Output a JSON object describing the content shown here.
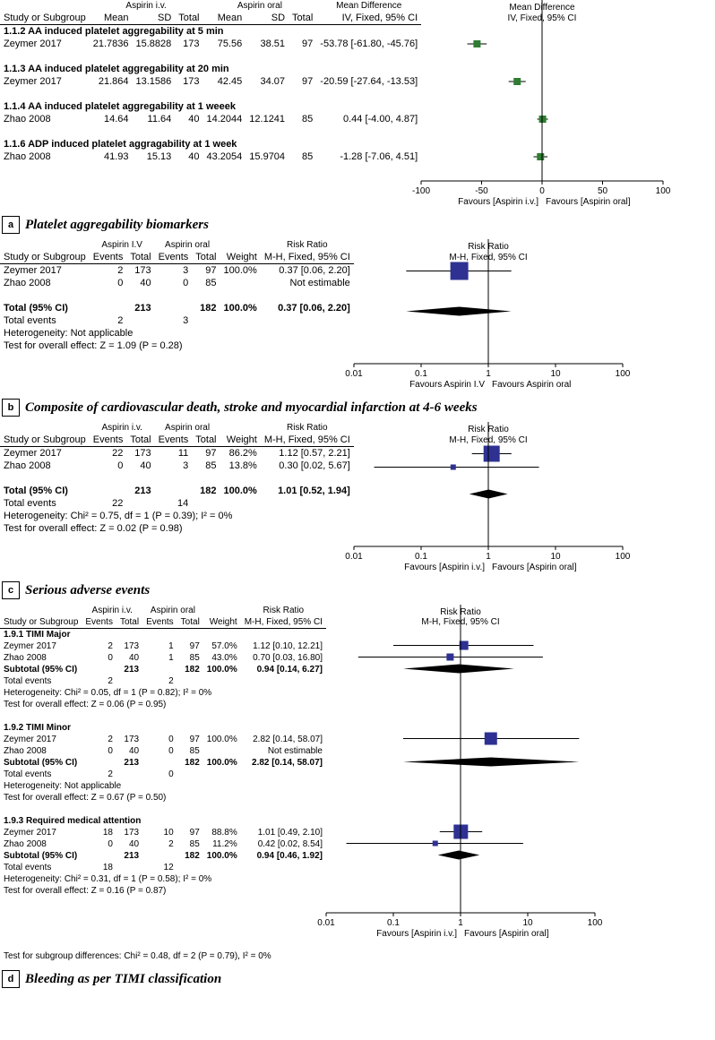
{
  "colors": {
    "marker": "#2e3192",
    "square_small": "#2e3192",
    "diamond": "#000000",
    "ci_line": "#000000",
    "axis": "#000000",
    "bg": "#ffffff",
    "marker_green": "#2e7d32"
  },
  "axis": {
    "log": {
      "min": 0.01,
      "max": 100,
      "ticks": [
        0.01,
        0.1,
        1,
        10,
        100
      ],
      "tick_labels": [
        "0.01",
        "0.1",
        "1",
        "10",
        "100"
      ]
    },
    "linear": {
      "min": -100,
      "max": 100,
      "ticks": [
        -100,
        -50,
        0,
        50,
        100
      ],
      "tick_labels": [
        "-100",
        "-50",
        "0",
        "50",
        "100"
      ]
    }
  },
  "panelA": {
    "letter": "a",
    "caption": "Platelet aggregability biomarkers",
    "group_labels": {
      "g1": "Aspirin i.v.",
      "g2": "Aspirin oral"
    },
    "col_head": [
      "Study or Subgroup",
      "Mean",
      "SD",
      "Total",
      "Mean",
      "SD",
      "Total",
      "Mean Difference",
      "IV, Fixed, 95% CI"
    ],
    "plot_head1": "Mean Difference",
    "plot_head2": "IV, Fixed, 95% CI",
    "fav_left": "Favours [Aspirin i.v.]",
    "fav_right": "Favours [Aspirin oral]",
    "sections": [
      {
        "title": "1.1.2 AA induced platelet aggregability at 5 min",
        "rows": [
          {
            "study": "Zeymer 2017",
            "m1": "21.7836",
            "sd1": "15.8828",
            "n1": "173",
            "m2": "75.56",
            "sd2": "38.51",
            "n2": "97",
            "md": "-53.78 [-61.80, -45.76]",
            "pt": -53.78,
            "lo": -61.8,
            "hi": -45.76
          }
        ]
      },
      {
        "title": "1.1.3 AA induced platelet aggregability at 20 min",
        "rows": [
          {
            "study": "Zeymer 2017",
            "m1": "21.864",
            "sd1": "13.1586",
            "n1": "173",
            "m2": "42.45",
            "sd2": "34.07",
            "n2": "97",
            "md": "-20.59 [-27.64, -13.53]",
            "pt": -20.59,
            "lo": -27.64,
            "hi": -13.53
          }
        ]
      },
      {
        "title": "1.1.4 AA induced platelet aggregability at 1 weeek",
        "rows": [
          {
            "study": "Zhao 2008",
            "m1": "14.64",
            "sd1": "11.64",
            "n1": "40",
            "m2": "14.2044",
            "sd2": "12.1241",
            "n2": "85",
            "md": "0.44 [-4.00, 4.87]",
            "pt": 0.44,
            "lo": -4.0,
            "hi": 4.87
          }
        ]
      },
      {
        "title": "1.1.6 ADP induced platelet aggragability at 1 week",
        "rows": [
          {
            "study": "Zhao 2008",
            "m1": "41.93",
            "sd1": "15.13",
            "n1": "40",
            "m2": "43.2054",
            "sd2": "15.9704",
            "n2": "85",
            "md": "-1.28 [-7.06, 4.51]",
            "pt": -1.28,
            "lo": -7.06,
            "hi": 4.51
          }
        ]
      }
    ]
  },
  "panelB": {
    "letter": "b",
    "caption": "Composite of cardiovascular death, stroke and myocardial infarction at 4-6 weeks",
    "group_labels": {
      "g1": "Aspirin I.V",
      "g2": "Aspirin oral"
    },
    "col_head": [
      "Study or Subgroup",
      "Events",
      "Total",
      "Events",
      "Total",
      "Weight",
      "Risk Ratio",
      "M-H, Fixed, 95% CI"
    ],
    "plot_head1": "Risk Ratio",
    "plot_head2": "M-H, Fixed, 95% CI",
    "fav_left": "Favours Aspirin I.V",
    "fav_right": "Favours Aspirin oral",
    "rows": [
      {
        "study": "Zeymer 2017",
        "e1": "2",
        "n1": "173",
        "e2": "3",
        "n2": "97",
        "w": "100.0%",
        "rr": "0.37 [0.06, 2.20]",
        "pt": 0.37,
        "lo": 0.06,
        "hi": 2.2,
        "size": 20
      },
      {
        "study": "Zhao 2008",
        "e1": "0",
        "n1": "40",
        "e2": "0",
        "n2": "85",
        "w": "",
        "rr": "Not estimable",
        "pt": null
      }
    ],
    "total": {
      "label": "Total (95% CI)",
      "n1": "213",
      "n2": "182",
      "w": "100.0%",
      "rr": "0.37 [0.06, 2.20]",
      "pt": 0.37,
      "lo": 0.06,
      "hi": 2.2
    },
    "total_events": {
      "label": "Total events",
      "e1": "2",
      "e2": "3"
    },
    "het": "Heterogeneity: Not applicable",
    "eff": "Test for overall effect: Z = 1.09 (P = 0.28)"
  },
  "panelC": {
    "letter": "c",
    "caption": "Serious adverse events",
    "group_labels": {
      "g1": "Aspirin i.v.",
      "g2": "Aspirin oral"
    },
    "col_head": [
      "Study or Subgroup",
      "Events",
      "Total",
      "Events",
      "Total",
      "Weight",
      "Risk Ratio",
      "M-H, Fixed, 95% CI"
    ],
    "plot_head1": "Risk Ratio",
    "plot_head2": "M-H, Fixed, 95% CI",
    "fav_left": "Favours [Aspirin i.v.]",
    "fav_right": "Favours [Aspirin oral]",
    "rows": [
      {
        "study": "Zeymer 2017",
        "e1": "22",
        "n1": "173",
        "e2": "11",
        "n2": "97",
        "w": "86.2%",
        "rr": "1.12 [0.57, 2.21]",
        "pt": 1.12,
        "lo": 0.57,
        "hi": 2.21,
        "size": 18
      },
      {
        "study": "Zhao 2008",
        "e1": "0",
        "n1": "40",
        "e2": "3",
        "n2": "85",
        "w": "13.8%",
        "rr": "0.30 [0.02, 5.67]",
        "pt": 0.3,
        "lo": 0.02,
        "hi": 5.67,
        "size": 6
      }
    ],
    "total": {
      "label": "Total (95% CI)",
      "n1": "213",
      "n2": "182",
      "w": "100.0%",
      "rr": "1.01 [0.52, 1.94]",
      "pt": 1.01,
      "lo": 0.52,
      "hi": 1.94
    },
    "total_events": {
      "label": "Total events",
      "e1": "22",
      "e2": "14"
    },
    "het": "Heterogeneity: Chi² = 0.75, df = 1 (P = 0.39); I² = 0%",
    "eff": "Test for overall effect: Z = 0.02 (P = 0.98)"
  },
  "panelD": {
    "letter": "d",
    "caption": "Bleeding as per TIMI classification",
    "group_labels": {
      "g1": "Aspirin i.v.",
      "g2": "Aspirin oral"
    },
    "col_head": [
      "Study or Subgroup",
      "Events",
      "Total",
      "Events",
      "Total",
      "Weight",
      "Risk Ratio",
      "M-H, Fixed, 95% CI"
    ],
    "plot_head1": "Risk Ratio",
    "plot_head2": "M-H, Fixed, 95% CI",
    "fav_left": "Favours [Aspirin i.v.]",
    "fav_right": "Favours [Aspirin oral]",
    "sections": [
      {
        "title": "1.9.1 TIMI Major",
        "rows": [
          {
            "study": "Zeymer 2017",
            "e1": "2",
            "n1": "173",
            "e2": "1",
            "n2": "97",
            "w": "57.0%",
            "rr": "1.12 [0.10, 12.21]",
            "pt": 1.12,
            "lo": 0.1,
            "hi": 12.21,
            "size": 10
          },
          {
            "study": "Zhao 2008",
            "e1": "0",
            "n1": "40",
            "e2": "1",
            "n2": "85",
            "w": "43.0%",
            "rr": "0.70 [0.03, 16.80]",
            "pt": 0.7,
            "lo": 0.03,
            "hi": 16.8,
            "size": 8
          }
        ],
        "subtotal": {
          "label": "Subtotal (95% CI)",
          "n1": "213",
          "n2": "182",
          "w": "100.0%",
          "rr": "0.94 [0.14, 6.27]",
          "pt": 0.94,
          "lo": 0.14,
          "hi": 6.27
        },
        "total_events": {
          "label": "Total events",
          "e1": "2",
          "e2": "2"
        },
        "het": "Heterogeneity: Chi² = 0.05, df = 1 (P = 0.82); I² = 0%",
        "eff": "Test for overall effect: Z = 0.06 (P = 0.95)"
      },
      {
        "title": "1.9.2 TIMI Minor",
        "rows": [
          {
            "study": "Zeymer 2017",
            "e1": "2",
            "n1": "173",
            "e2": "0",
            "n2": "97",
            "w": "100.0%",
            "rr": "2.82 [0.14, 58.07]",
            "pt": 2.82,
            "lo": 0.14,
            "hi": 58.07,
            "size": 14
          },
          {
            "study": "Zhao 2008",
            "e1": "0",
            "n1": "40",
            "e2": "0",
            "n2": "85",
            "w": "",
            "rr": "Not estimable",
            "pt": null
          }
        ],
        "subtotal": {
          "label": "Subtotal (95% CI)",
          "n1": "213",
          "n2": "182",
          "w": "100.0%",
          "rr": "2.82 [0.14, 58.07]",
          "pt": 2.82,
          "lo": 0.14,
          "hi": 58.07
        },
        "total_events": {
          "label": "Total events",
          "e1": "2",
          "e2": "0"
        },
        "het": "Heterogeneity: Not applicable",
        "eff": "Test for overall effect: Z = 0.67 (P = 0.50)"
      },
      {
        "title": "1.9.3 Required medical attention",
        "rows": [
          {
            "study": "Zeymer 2017",
            "e1": "18",
            "n1": "173",
            "e2": "10",
            "n2": "97",
            "w": "88.8%",
            "rr": "1.01 [0.49, 2.10]",
            "pt": 1.01,
            "lo": 0.49,
            "hi": 2.1,
            "size": 16
          },
          {
            "study": "Zhao 2008",
            "e1": "0",
            "n1": "40",
            "e2": "2",
            "n2": "85",
            "w": "11.2%",
            "rr": "0.42 [0.02, 8.54]",
            "pt": 0.42,
            "lo": 0.02,
            "hi": 8.54,
            "size": 6
          }
        ],
        "subtotal": {
          "label": "Subtotal (95% CI)",
          "n1": "213",
          "n2": "182",
          "w": "100.0%",
          "rr": "0.94 [0.46, 1.92]",
          "pt": 0.94,
          "lo": 0.46,
          "hi": 1.92
        },
        "total_events": {
          "label": "Total events",
          "e1": "18",
          "e2": "12"
        },
        "het": "Heterogeneity: Chi² = 0.31, df = 1 (P = 0.58); I² = 0%",
        "eff": "Test for overall effect: Z = 0.16 (P = 0.87)"
      }
    ],
    "subgroup_diff": "Test for subgroup differences: Chi² = 0.48, df = 2 (P = 0.79), I² = 0%"
  }
}
